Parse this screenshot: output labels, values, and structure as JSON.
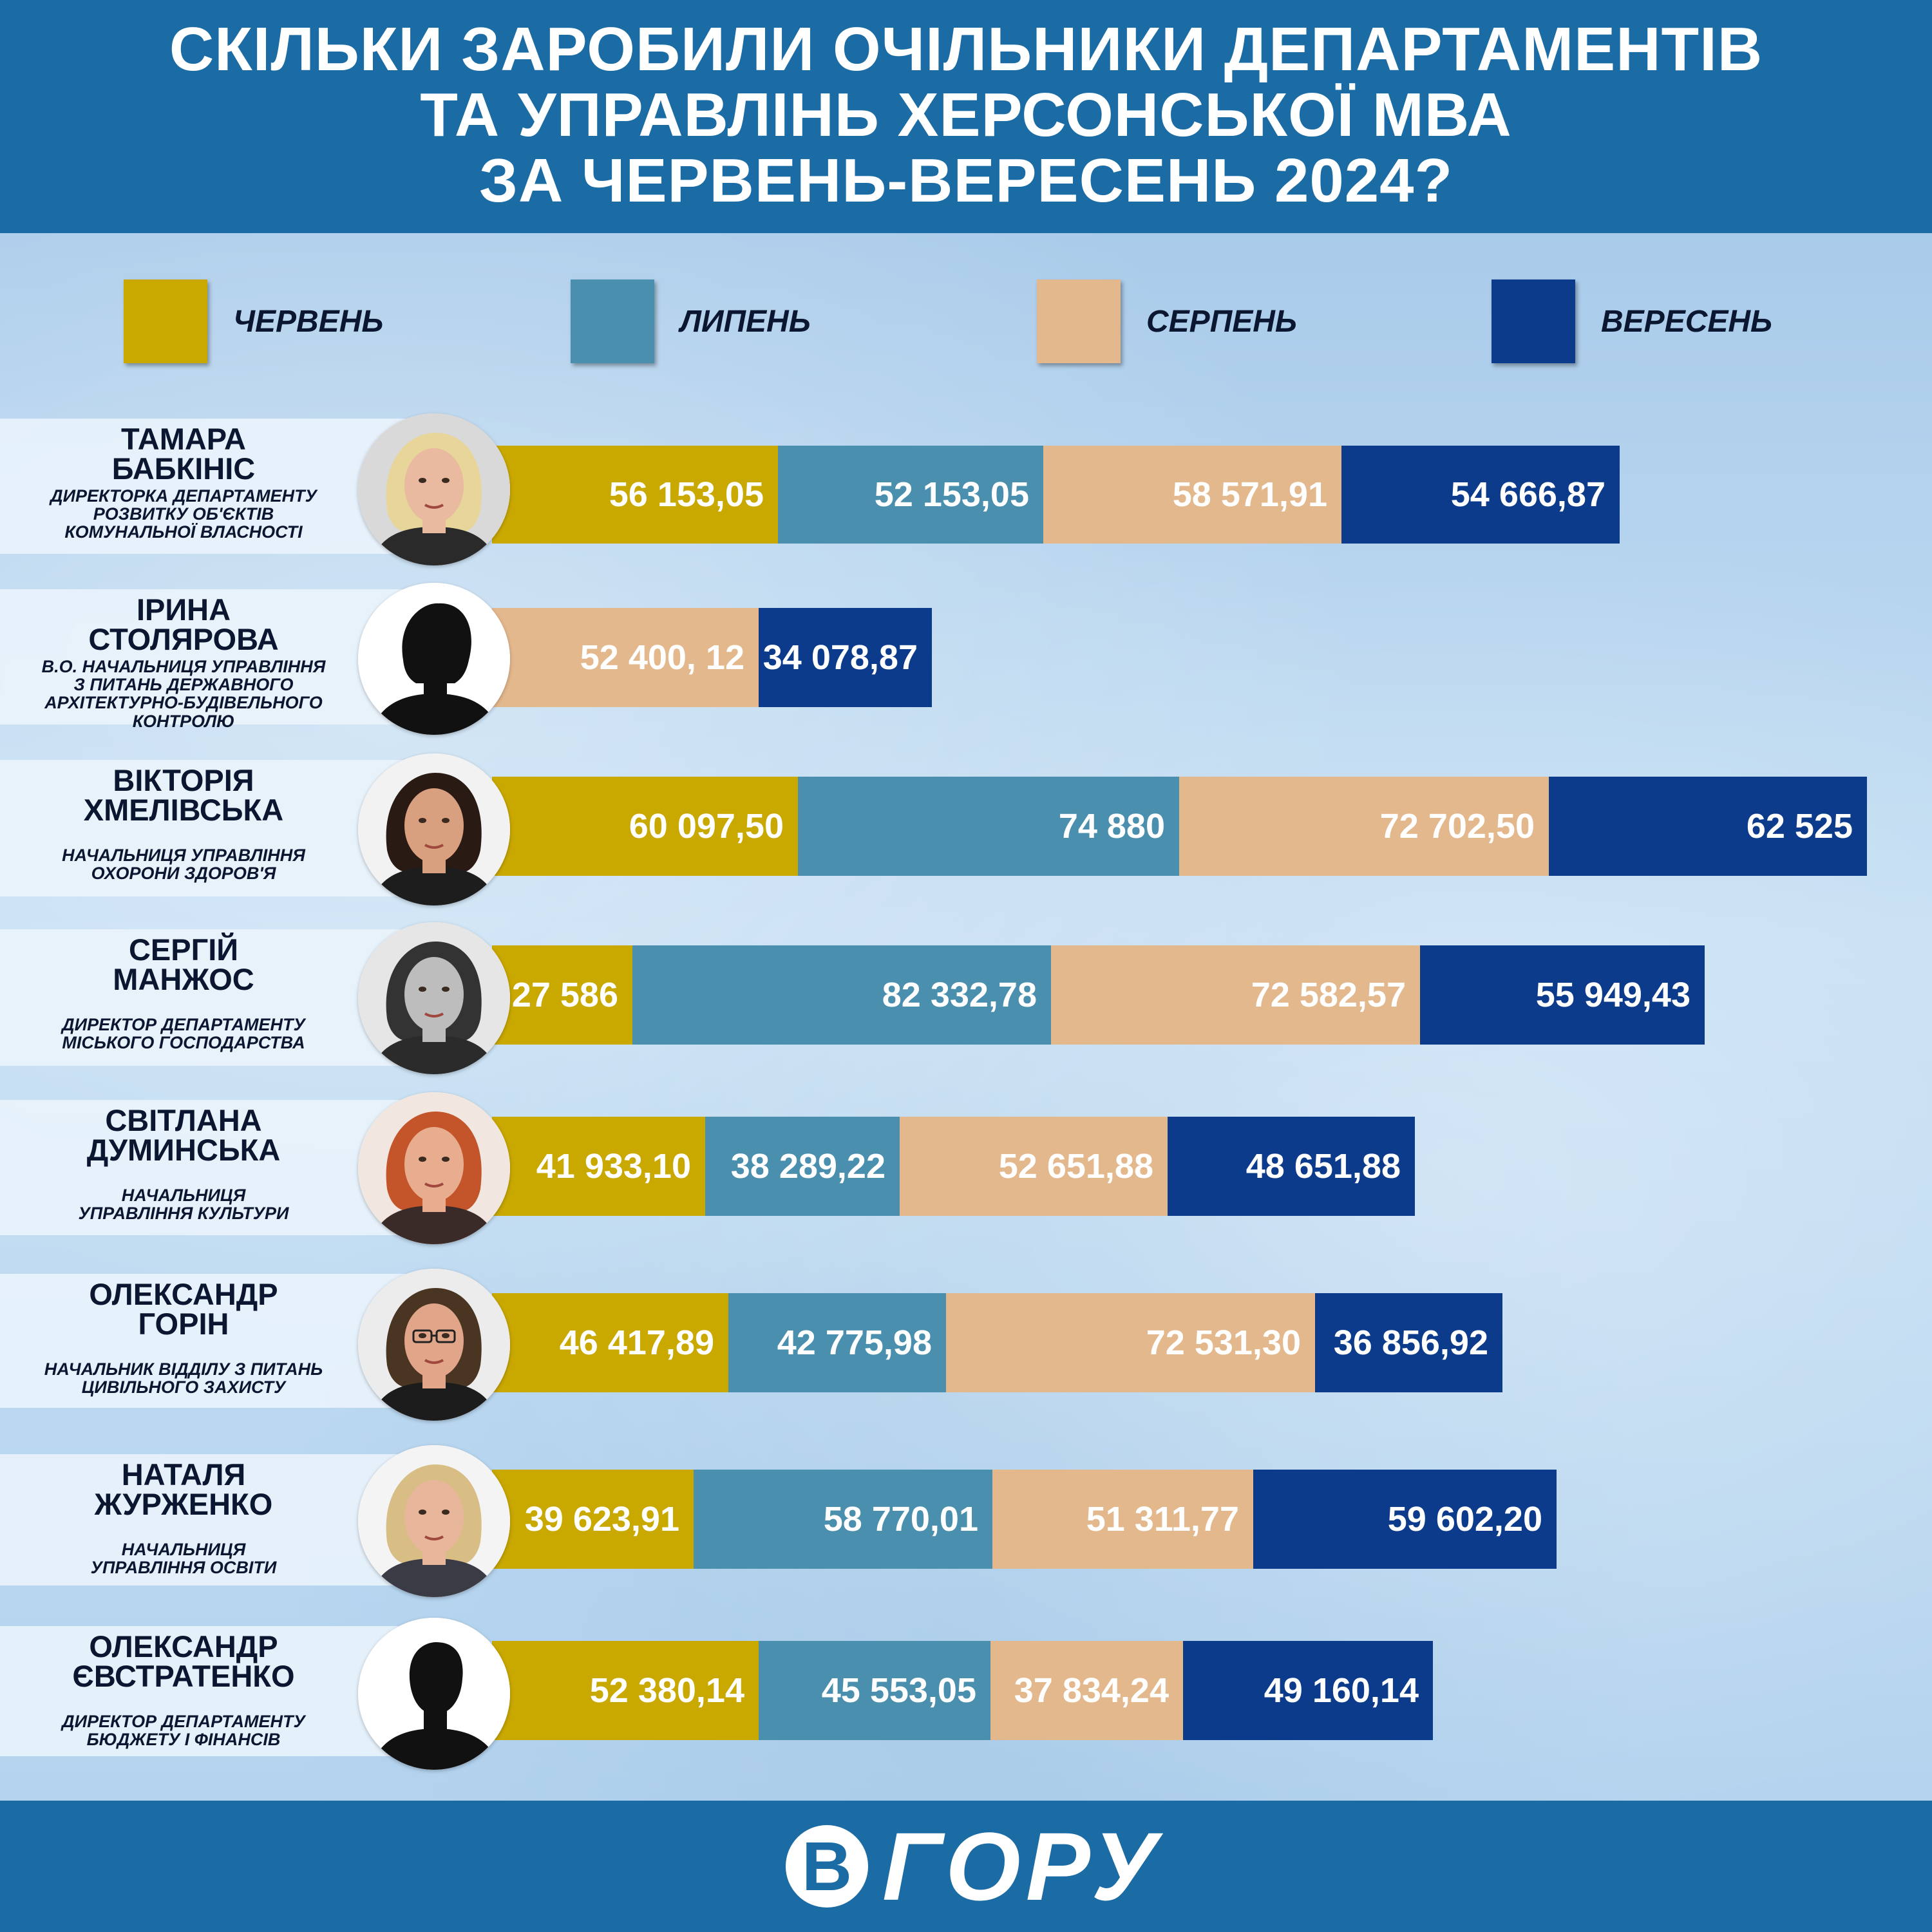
{
  "header": {
    "title_lines": [
      "СКІЛЬКИ ЗАРОБИЛИ ОЧІЛЬНИКИ ДЕПАРТАМЕНТІВ",
      "ТА УПРАВЛІНЬ ХЕРСОНСЬКОЇ МВА",
      "ЗА ЧЕРВЕНЬ-ВЕРЕСЕНЬ 2024?"
    ]
  },
  "footer": {
    "logo_mark": "В",
    "logo_word": "ГОРУ"
  },
  "colors": {
    "june": "#c9a800",
    "july": "#4a8fae",
    "august": "#e4b88d",
    "september": "#0c3b8c",
    "header": "#1b6ca5"
  },
  "chart_data": {
    "type": "bar",
    "orientation": "horizontal",
    "stacked": true,
    "title": "СКІЛЬКИ ЗАРОБИЛИ ОЧІЛЬНИКИ ДЕПАРТАМЕНТІВ ТА УПРАВЛІНЬ ХЕРСОНСЬКОЇ МВА ЗА ЧЕРВЕНЬ-ВЕРЕСЕНЬ 2024?",
    "legend_position": "top",
    "months": [
      {
        "key": "june",
        "label": "ЧЕРВЕНЬ"
      },
      {
        "key": "july",
        "label": "ЛИПЕНЬ"
      },
      {
        "key": "august",
        "label": "СЕРПЕНЬ"
      },
      {
        "key": "september",
        "label": "ВЕРЕСЕНЬ"
      }
    ],
    "people": [
      {
        "name_lines": [
          "ТАМАРА",
          "БАБКІНІС"
        ],
        "role_lines": [
          "ДИРЕКТОРКА ДЕПАРТАМЕНТУ",
          "РОЗВИТКУ ОБ'ЄКТІВ",
          "КОМУНАЛЬНОЇ ВЛАСНОСТІ"
        ],
        "photo": "photo-woman-blonde",
        "segments": [
          {
            "month": "june",
            "value": 56153.05,
            "label": "56 153,05"
          },
          {
            "month": "july",
            "value": 52153.05,
            "label": "52 153,05"
          },
          {
            "month": "august",
            "value": 58571.91,
            "label": "58 571,91"
          },
          {
            "month": "september",
            "value": 54666.87,
            "label": "54 666,87"
          }
        ]
      },
      {
        "name_lines": [
          "ІРИНА",
          "СТОЛЯРОВА"
        ],
        "role_lines": [
          "В.О. НАЧАЛЬНИЦЯ УПРАВЛІННЯ",
          "З ПИТАНЬ ДЕРЖАВНОГО",
          "АРХІТЕКТУРНО-БУДІВЕЛЬНОГО КОНТРОЛЮ"
        ],
        "photo": "silhouette-female",
        "segments": [
          {
            "month": "august",
            "value": 52400.12,
            "label": "52 400, 12"
          },
          {
            "month": "september",
            "value": 34078.87,
            "label": "34 078,87"
          }
        ]
      },
      {
        "name_lines": [
          "ВІКТОРІЯ",
          "ХМЕЛІВСЬКА"
        ],
        "role_lines": [
          "НАЧАЛЬНИЦЯ УПРАВЛІННЯ",
          "ОХОРОНИ ЗДОРОВ'Я"
        ],
        "photo": "photo-woman-dark-hair",
        "segments": [
          {
            "month": "june",
            "value": 60097.5,
            "label": "60 097,50"
          },
          {
            "month": "july",
            "value": 74880,
            "label": "74 880"
          },
          {
            "month": "august",
            "value": 72702.5,
            "label": "72 702,50"
          },
          {
            "month": "september",
            "value": 62525,
            "label": "62 525"
          }
        ]
      },
      {
        "name_lines": [
          "СЕРГІЙ",
          "МАНЖОС"
        ],
        "role_lines": [
          "ДИРЕКТОР ДЕПАРТАМЕНТУ",
          "МІСЬКОГО ГОСПОДАРСТВА"
        ],
        "photo": "photo-man-bw",
        "segments": [
          {
            "month": "june",
            "value": 27586,
            "label": "27 586"
          },
          {
            "month": "july",
            "value": 82332.78,
            "label": "82 332,78"
          },
          {
            "month": "august",
            "value": 72582.57,
            "label": "72 582,57"
          },
          {
            "month": "september",
            "value": 55949.43,
            "label": "55 949,43"
          }
        ]
      },
      {
        "name_lines": [
          "СВІТЛАНА",
          "ДУМИНСЬКА"
        ],
        "role_lines": [
          "НАЧАЛЬНИЦЯ",
          "УПРАВЛІННЯ КУЛЬТУРИ"
        ],
        "photo": "photo-woman-red-hair",
        "segments": [
          {
            "month": "june",
            "value": 41933.1,
            "label": "41 933,10"
          },
          {
            "month": "july",
            "value": 38289.22,
            "label": "38 289,22"
          },
          {
            "month": "august",
            "value": 52651.88,
            "label": "52 651,88"
          },
          {
            "month": "september",
            "value": 48651.88,
            "label": "48 651,88"
          }
        ]
      },
      {
        "name_lines": [
          "ОЛЕКСАНДР",
          "ГОРІН"
        ],
        "role_lines": [
          "НАЧАЛЬНИК ВІДДІЛУ З ПИТАНЬ",
          "ЦИВІЛЬНОГО ЗАХИСТУ"
        ],
        "photo": "photo-man-glasses",
        "segments": [
          {
            "month": "june",
            "value": 46417.89,
            "label": "46 417,89"
          },
          {
            "month": "july",
            "value": 42775.98,
            "label": "42 775,98"
          },
          {
            "month": "august",
            "value": 72531.3,
            "label": "72 531,30"
          },
          {
            "month": "september",
            "value": 36856.92,
            "label": "36 856,92"
          }
        ]
      },
      {
        "name_lines": [
          "НАТАЛЯ",
          "ЖУРЖЕНКО"
        ],
        "role_lines": [
          "НАЧАЛЬНИЦЯ",
          "УПРАВЛІННЯ ОСВІТИ"
        ],
        "photo": "photo-woman-light-hair",
        "segments": [
          {
            "month": "june",
            "value": 39623.91,
            "label": "39 623,91"
          },
          {
            "month": "july",
            "value": 58770.01,
            "label": "58 770,01"
          },
          {
            "month": "august",
            "value": 51311.77,
            "label": "51 311,77"
          },
          {
            "month": "september",
            "value": 59602.2,
            "label": "59 602,20"
          }
        ]
      },
      {
        "name_lines": [
          "ОЛЕКСАНДР",
          "ЄВСТРАТЕНКО"
        ],
        "role_lines": [
          "ДИРЕКТОР ДЕПАРТАМЕНТУ",
          "БЮДЖЕТУ І ФІНАНСІВ"
        ],
        "photo": "silhouette-male",
        "segments": [
          {
            "month": "june",
            "value": 52380.14,
            "label": "52 380,14"
          },
          {
            "month": "july",
            "value": 45553.05,
            "label": "45 553,05"
          },
          {
            "month": "august",
            "value": 37834.24,
            "label": "37 834,24"
          },
          {
            "month": "september",
            "value": 49160.14,
            "label": "49 160,14"
          }
        ]
      }
    ]
  }
}
